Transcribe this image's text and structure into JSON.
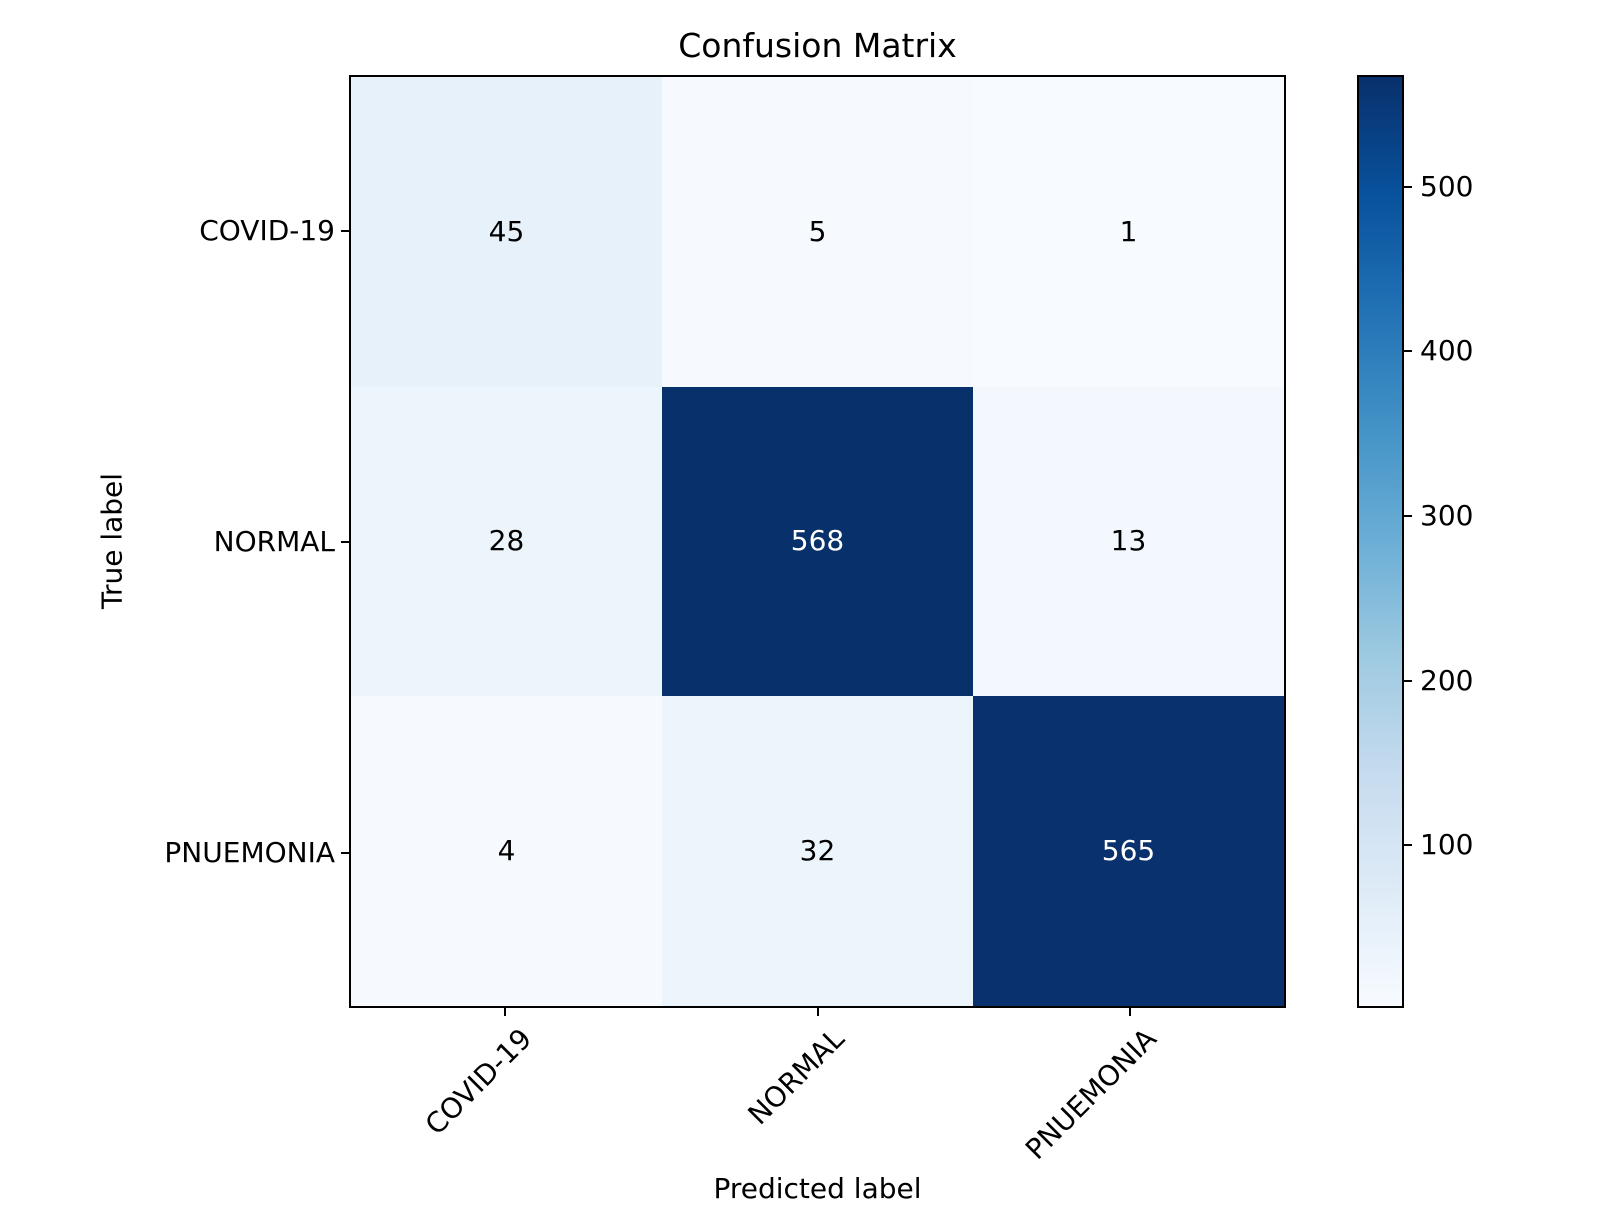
{
  "chart_data": {
    "type": "heatmap",
    "title": "Confusion Matrix",
    "xlabel": "Predicted label",
    "ylabel": "True label",
    "x_categories": [
      "COVID-19",
      "NORMAL",
      "PNUEMONIA"
    ],
    "y_categories": [
      "COVID-19",
      "NORMAL",
      "PNUEMONIA"
    ],
    "matrix": [
      [
        45,
        5,
        1
      ],
      [
        28,
        568,
        13
      ],
      [
        4,
        32,
        565
      ]
    ],
    "colorbar": {
      "ticks": [
        100,
        200,
        300,
        400,
        500
      ],
      "vmin": 1,
      "vmax": 568,
      "position": "right"
    },
    "colormap_name": "Blues",
    "colormap_stops": [
      "#f7fbff",
      "#deebf7",
      "#c6dbef",
      "#9ecae1",
      "#6baed6",
      "#4292c6",
      "#2171b5",
      "#08519c",
      "#08306b"
    ],
    "annotation_colors": {
      "on_dark": "#ffffff",
      "on_light": "#000000"
    },
    "axis_color": "#000000",
    "background_color": "#ffffff",
    "grid": false,
    "x_tick_rotation_deg": 45
  }
}
